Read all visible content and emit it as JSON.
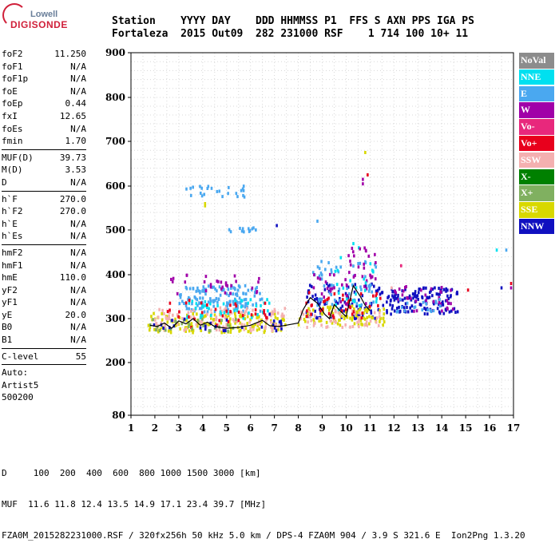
{
  "logo": {
    "top": "Lowell",
    "bottom": "DIGISONDE"
  },
  "header": {
    "line1": "Station    YYYY DAY    DDD HHMMSS P1  FFS S AXN PPS IGA PS",
    "line2": "Fortaleza  2015 Out09  282 231000 RSF    1 714 100 10+ 11"
  },
  "params": {
    "group1": [
      {
        "name": "foF2",
        "value": "11.250"
      },
      {
        "name": "foF1",
        "value": "N/A"
      },
      {
        "name": "foF1p",
        "value": "N/A"
      },
      {
        "name": "foE",
        "value": "N/A"
      },
      {
        "name": "foEp",
        "value": "0.44"
      },
      {
        "name": "fxI",
        "value": "12.65"
      },
      {
        "name": "foEs",
        "value": "N/A"
      },
      {
        "name": "fmin",
        "value": "1.70"
      }
    ],
    "group2": [
      {
        "name": "MUF(D)",
        "value": "39.73"
      },
      {
        "name": "M(D)",
        "value": "3.53"
      },
      {
        "name": "D",
        "value": "N/A"
      }
    ],
    "group3": [
      {
        "name": "h`F",
        "value": "270.0"
      },
      {
        "name": "h`F2",
        "value": "270.0"
      },
      {
        "name": "h`E",
        "value": "N/A"
      },
      {
        "name": "h`Es",
        "value": "N/A"
      }
    ],
    "group4": [
      {
        "name": "hmF2",
        "value": "N/A"
      },
      {
        "name": "hmF1",
        "value": "N/A"
      },
      {
        "name": "hmE",
        "value": "110.0"
      },
      {
        "name": "yF2",
        "value": "N/A"
      },
      {
        "name": "yF1",
        "value": "N/A"
      },
      {
        "name": "yE",
        "value": "20.0"
      },
      {
        "name": "B0",
        "value": "N/A"
      },
      {
        "name": "B1",
        "value": "N/A"
      }
    ],
    "group5": [
      {
        "name": "C-level",
        "value": "55"
      }
    ],
    "auto": [
      "Auto:",
      "Artist5",
      "500200"
    ]
  },
  "footer": {
    "line1": "D     100  200  400  600  800 1000 1500 3000 [km]",
    "line2": "MUF  11.6 11.8 12.4 13.5 14.9 17.1 23.4 39.7 [MHz]",
    "line3": "FZA0M_2015282231000.RSF / 320fx256h 50 kHz 5.0 km / DPS-4 FZA0M 904 / 3.9 S 321.6 E  Ion2Png 1.3.20"
  },
  "legend": [
    {
      "label": "NoVal",
      "color": "#8c8c8c"
    },
    {
      "label": "NNE",
      "color": "#00e0f0"
    },
    {
      "label": "E",
      "color": "#4aa8f0"
    },
    {
      "label": "W",
      "color": "#a000a8"
    },
    {
      "label": "Vo-",
      "color": "#e8287c"
    },
    {
      "label": "Vo+",
      "color": "#e8001c"
    },
    {
      "label": "SSW",
      "color": "#f4b0b0"
    },
    {
      "label": "X-",
      "color": "#008000"
    },
    {
      "label": "X+",
      "color": "#80b060"
    },
    {
      "label": "SSE",
      "color": "#d8d800"
    },
    {
      "label": "NNW",
      "color": "#1010c0"
    }
  ],
  "chart_data": {
    "type": "scatter",
    "title": "",
    "xlabel": "",
    "ylabel": "",
    "xlim": [
      1,
      17
    ],
    "ylim": [
      80,
      900
    ],
    "x_ticks": [
      1,
      2,
      3,
      4,
      5,
      6,
      7,
      8,
      9,
      10,
      11,
      12,
      13,
      14,
      15,
      16,
      17
    ],
    "y_ticks": [
      80,
      200,
      300,
      400,
      500,
      600,
      700,
      800,
      900
    ],
    "grid": true,
    "trace": {
      "x": [
        1.8,
        2.1,
        2.4,
        2.7,
        3.0,
        3.3,
        3.6,
        3.9,
        4.2,
        4.5,
        5.0,
        5.5,
        6.0,
        6.5,
        6.8,
        7.2,
        7.6,
        8.0,
        8.2,
        8.5,
        8.8,
        9.1,
        9.3,
        9.5,
        9.8,
        10.0,
        10.3,
        10.6,
        10.8,
        11.0
      ],
      "y": [
        285,
        282,
        290,
        278,
        295,
        288,
        300,
        285,
        292,
        282,
        278,
        280,
        285,
        296,
        284,
        282,
        286,
        290,
        320,
        348,
        335,
        310,
        300,
        332,
        315,
        305,
        375,
        350,
        330,
        318
      ]
    },
    "clusters": [
      {
        "series": "E",
        "x": [
          3.0,
          6.5
        ],
        "y": [
          315,
          375
        ],
        "n": 140
      },
      {
        "series": "SSE",
        "x": [
          1.7,
          7.5
        ],
        "y": [
          268,
          312
        ],
        "n": 150
      },
      {
        "series": "SSW",
        "x": [
          2.0,
          7.5
        ],
        "y": [
          272,
          325
        ],
        "n": 120
      },
      {
        "series": "NNE",
        "x": [
          3.3,
          6.8
        ],
        "y": [
          300,
          345
        ],
        "n": 45
      },
      {
        "series": "W",
        "x": [
          2.5,
          6.5
        ],
        "y": [
          355,
          400
        ],
        "n": 30
      },
      {
        "series": "Vo+",
        "x": [
          2.5,
          7.0
        ],
        "y": [
          280,
          345
        ],
        "n": 35
      },
      {
        "series": "X+",
        "x": [
          1.8,
          5.5
        ],
        "y": [
          270,
          300
        ],
        "n": 30
      },
      {
        "series": "NNW",
        "x": [
          1.8,
          7.5
        ],
        "y": [
          270,
          300
        ],
        "n": 25
      },
      {
        "series": "NNW",
        "x": [
          8.3,
          11.6
        ],
        "y": [
          300,
          380
        ],
        "n": 90
      },
      {
        "series": "SSE",
        "x": [
          8.0,
          11.6
        ],
        "y": [
          285,
          330
        ],
        "n": 90
      },
      {
        "series": "E",
        "x": [
          8.5,
          11.3
        ],
        "y": [
          330,
          430
        ],
        "n": 60
      },
      {
        "series": "SSW",
        "x": [
          8.0,
          11.5
        ],
        "y": [
          280,
          320
        ],
        "n": 50
      },
      {
        "series": "Vo+",
        "x": [
          8.3,
          11.5
        ],
        "y": [
          300,
          360
        ],
        "n": 40
      },
      {
        "series": "W",
        "x": [
          8.6,
          11.3
        ],
        "y": [
          330,
          410
        ],
        "n": 35
      },
      {
        "series": "NNE",
        "x": [
          9.5,
          11.3
        ],
        "y": [
          300,
          470
        ],
        "n": 25
      },
      {
        "series": "NNW",
        "x": [
          11.7,
          14.7
        ],
        "y": [
          310,
          370
        ],
        "n": 130
      },
      {
        "series": "W",
        "x": [
          12.0,
          14.5
        ],
        "y": [
          315,
          375
        ],
        "n": 35
      },
      {
        "series": "E",
        "x": [
          12.0,
          14.0
        ],
        "y": [
          315,
          345
        ],
        "n": 20
      },
      {
        "series": "E",
        "x": [
          3.3,
          5.8
        ],
        "y": [
          575,
          600
        ],
        "n": 25
      },
      {
        "series": "E",
        "x": [
          5.0,
          6.3
        ],
        "y": [
          495,
          505
        ],
        "n": 12
      },
      {
        "series": "W",
        "x": [
          10.0,
          11.5
        ],
        "y": [
          400,
          460
        ],
        "n": 15
      }
    ],
    "isolated": [
      {
        "series": "SSE",
        "x": 10.8,
        "y": 675
      },
      {
        "series": "Vo+",
        "x": 10.9,
        "y": 625
      },
      {
        "series": "W",
        "x": 10.7,
        "y": 605
      },
      {
        "series": "W",
        "x": 10.7,
        "y": 615
      },
      {
        "series": "SSE",
        "x": 4.1,
        "y": 555
      },
      {
        "series": "SSE",
        "x": 4.1,
        "y": 560
      },
      {
        "series": "NNW",
        "x": 7.1,
        "y": 510
      },
      {
        "series": "E",
        "x": 8.8,
        "y": 520
      },
      {
        "series": "E",
        "x": 16.7,
        "y": 455
      },
      {
        "series": "NNE",
        "x": 16.3,
        "y": 455
      },
      {
        "series": "NNW",
        "x": 16.5,
        "y": 370
      },
      {
        "series": "Vo+",
        "x": 16.9,
        "y": 380
      },
      {
        "series": "W",
        "x": 16.9,
        "y": 370
      },
      {
        "series": "Vo+",
        "x": 15.1,
        "y": 365
      },
      {
        "series": "Vo-",
        "x": 12.3,
        "y": 420
      },
      {
        "series": "SSW",
        "x": 11.9,
        "y": 370
      },
      {
        "series": "W",
        "x": 11.2,
        "y": 445
      },
      {
        "series": "NNW",
        "x": 6.8,
        "y": 310
      }
    ]
  }
}
